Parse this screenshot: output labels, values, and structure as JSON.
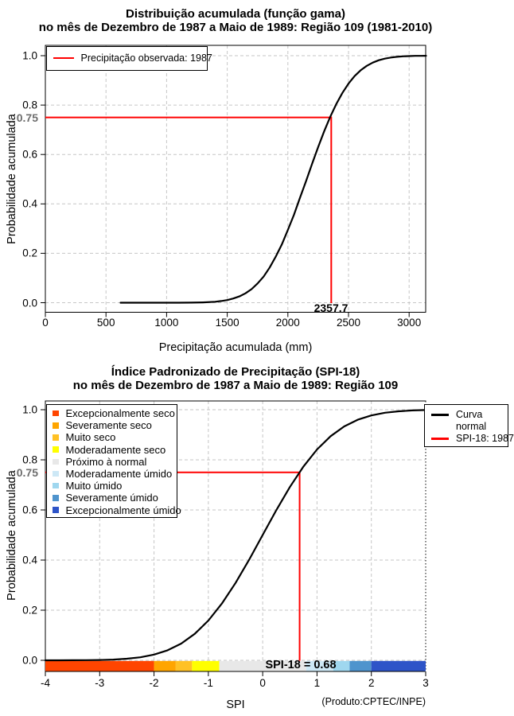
{
  "figure": {
    "source_note": "(Produto:CPTEC/INPE)"
  },
  "colors": {
    "curve": "#000000",
    "reference": "#FF0000",
    "grid": "#C6C6C6",
    "ref_label_gray": "#6E6E6E"
  },
  "chart_data": [
    {
      "type": "line",
      "title": "Distribuição acumulada (função gama)",
      "subtitle": "no mês de Dezembro de 1987 a Maio de 1989: Região 109 (1981-2010)",
      "xlabel": "Precipitação acumulada (mm)",
      "ylabel": "Probabilidade acumulada",
      "xlim": [
        0,
        3140
      ],
      "ylim": [
        0,
        1
      ],
      "grid": true,
      "x_ticks": [
        0,
        500,
        1000,
        1500,
        2000,
        2500,
        3000
      ],
      "x_tick_labels": [
        "0",
        "500",
        "1000",
        "1500",
        "2000",
        "2500",
        "3000"
      ],
      "y_ticks": [
        0,
        0.2,
        0.4,
        0.6,
        0.8,
        1.0
      ],
      "y_tick_labels": [
        "0.0",
        "0.2",
        "0.4",
        "0.6",
        "0.8",
        "1.0"
      ],
      "legend": [
        {
          "label": "Precipitação observada: 1987",
          "color": "#FF0000"
        }
      ],
      "reference": {
        "probability": 0.75,
        "precipitation_mm": 2357.7,
        "label_y": "0.75",
        "label_x": "2357.7",
        "color": "#FF0000"
      },
      "series": [
        {
          "name": "Distribuição acumulada (função gama)",
          "color": "#000000",
          "x": [
            620,
            800,
            1000,
            1100,
            1200,
            1300,
            1400,
            1450,
            1500,
            1550,
            1600,
            1650,
            1700,
            1750,
            1800,
            1850,
            1900,
            1950,
            2000,
            2050,
            2100,
            2150,
            2200,
            2250,
            2300,
            2350,
            2400,
            2450,
            2500,
            2550,
            2600,
            2650,
            2700,
            2750,
            2800,
            2850,
            2900,
            2950,
            3000,
            3050,
            3100,
            3140
          ],
          "y": [
            0,
            0,
            0,
            0.0001,
            0.0004,
            0.0013,
            0.004,
            0.0067,
            0.0107,
            0.017,
            0.0256,
            0.038,
            0.0548,
            0.0778,
            0.1056,
            0.1423,
            0.1867,
            0.2358,
            0.2946,
            0.3557,
            0.4247,
            0.4928,
            0.5628,
            0.6304,
            0.6947,
            0.753,
            0.8051,
            0.8497,
            0.8869,
            0.9171,
            0.9407,
            0.9588,
            0.9721,
            0.9816,
            0.9882,
            0.9926,
            0.9955,
            0.9974,
            0.9985,
            0.9992,
            0.9995,
            0.9997
          ]
        }
      ]
    },
    {
      "type": "line",
      "title": "Índice Padronizado de Precipitação (SPI-18)",
      "subtitle": "no mês de Dezembro de 1987 a Maio de 1989: Região 109",
      "xlabel": "SPI",
      "ylabel": "Probabilidade acumulada",
      "xlim": [
        -4,
        3
      ],
      "ylim": [
        0,
        1
      ],
      "grid": true,
      "x_ticks": [
        -4,
        -3,
        -2,
        -1,
        0,
        1,
        2,
        3
      ],
      "x_tick_labels": [
        "-4",
        "-3",
        "-2",
        "-1",
        "0",
        "1",
        "2",
        "3"
      ],
      "y_ticks": [
        0,
        0.2,
        0.4,
        0.6,
        0.8,
        1.0
      ],
      "y_tick_labels": [
        "0.0",
        "0.2",
        "0.4",
        "0.6",
        "0.8",
        "1.0"
      ],
      "legend": [
        {
          "label": "Curva normal",
          "display_lines": [
            "Curva",
            "normal"
          ],
          "color": "#000000"
        },
        {
          "label": "SPI-18: 1987",
          "display_lines": [
            "SPI-18: 1987"
          ],
          "color": "#FF0000"
        }
      ],
      "reference": {
        "probability": 0.75,
        "spi": 0.68,
        "label_y": "0.75",
        "annotation": "SPI-18 = 0.68",
        "color": "#FF0000"
      },
      "categories": [
        {
          "label": "Excepcionalmente seco",
          "color": "#FF4500",
          "from": -4,
          "to": -2
        },
        {
          "label": "Severamente seco",
          "color": "#FFA500",
          "from": -2,
          "to": -1.6
        },
        {
          "label": "Muito seco",
          "color": "#FFC125",
          "from": -1.6,
          "to": -1.3
        },
        {
          "label": "Moderadamente seco",
          "color": "#FFFF00",
          "from": -1.3,
          "to": -0.8
        },
        {
          "label": "Próximo à normal",
          "color": "#E8E8E8",
          "from": -0.8,
          "to": 0.8
        },
        {
          "label": "Moderadamente úmido",
          "color": "#CDE8F6",
          "from": 0.8,
          "to": 1.3
        },
        {
          "label": "Muito úmido",
          "color": "#9FD7EF",
          "from": 1.3,
          "to": 1.6
        },
        {
          "label": "Severamente úmido",
          "color": "#4F94CD",
          "from": 1.6,
          "to": 2
        },
        {
          "label": "Excepcionalmente úmido",
          "color": "#2E54C8",
          "from": 2,
          "to": 3
        }
      ],
      "series": [
        {
          "name": "Curva normal",
          "color": "#000000",
          "x": [
            -4,
            -3.75,
            -3.5,
            -3.25,
            -3,
            -2.75,
            -2.5,
            -2.25,
            -2,
            -1.75,
            -1.5,
            -1.25,
            -1,
            -0.75,
            -0.5,
            -0.25,
            0,
            0.25,
            0.5,
            0.75,
            1,
            1.25,
            1.5,
            1.75,
            2,
            2.25,
            2.5,
            2.75,
            3
          ],
          "y": [
            0,
            0.0001,
            0.0002,
            0.0006,
            0.0013,
            0.003,
            0.0062,
            0.0122,
            0.0228,
            0.0401,
            0.0668,
            0.1056,
            0.1587,
            0.2266,
            0.3085,
            0.4013,
            0.5,
            0.5987,
            0.6915,
            0.7734,
            0.8413,
            0.8944,
            0.9332,
            0.9599,
            0.9772,
            0.9878,
            0.9938,
            0.997,
            0.9987
          ]
        }
      ]
    }
  ]
}
